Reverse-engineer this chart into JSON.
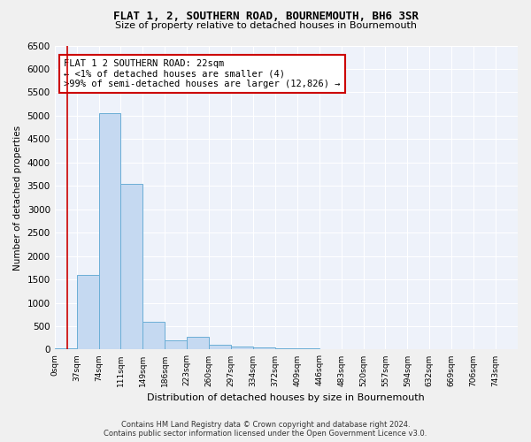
{
  "title": "FLAT 1, 2, SOUTHERN ROAD, BOURNEMOUTH, BH6 3SR",
  "subtitle": "Size of property relative to detached houses in Bournemouth",
  "xlabel": "Distribution of detached houses by size in Bournemouth",
  "ylabel": "Number of detached properties",
  "footer_line1": "Contains HM Land Registry data © Crown copyright and database right 2024.",
  "footer_line2": "Contains public sector information licensed under the Open Government Licence v3.0.",
  "bin_labels": [
    "0sqm",
    "37sqm",
    "74sqm",
    "111sqm",
    "149sqm",
    "186sqm",
    "223sqm",
    "260sqm",
    "297sqm",
    "334sqm",
    "372sqm",
    "409sqm",
    "446sqm",
    "483sqm",
    "520sqm",
    "557sqm",
    "594sqm",
    "632sqm",
    "669sqm",
    "706sqm",
    "743sqm"
  ],
  "bar_values": [
    30,
    1600,
    5050,
    3550,
    600,
    200,
    280,
    100,
    65,
    55,
    30,
    20,
    10,
    5,
    3,
    2,
    1,
    1,
    0,
    0,
    0
  ],
  "bar_color": "#c5d9f1",
  "bar_edge_color": "#6baed6",
  "background_color": "#eef2fa",
  "grid_color": "#ffffff",
  "annotation_line1": "FLAT 1 2 SOUTHERN ROAD: 22sqm",
  "annotation_line2": "← <1% of detached houses are smaller (4)",
  "annotation_line3": ">99% of semi-detached houses are larger (12,826) →",
  "annotation_box_color": "#ffffff",
  "annotation_box_edge": "#cc0000",
  "ylim": [
    0,
    6500
  ],
  "yticks": [
    0,
    500,
    1000,
    1500,
    2000,
    2500,
    3000,
    3500,
    4000,
    4500,
    5000,
    5500,
    6000,
    6500
  ],
  "fig_bg": "#f0f0f0"
}
